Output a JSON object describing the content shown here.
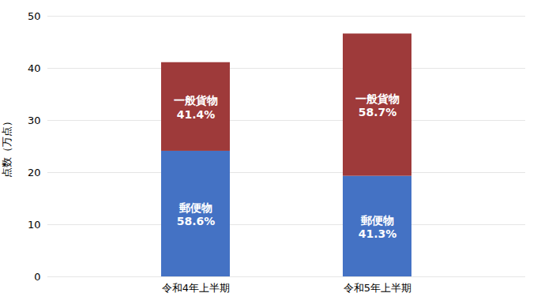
{
  "chart_data": {
    "type": "bar",
    "stacked": true,
    "grid": true,
    "categories": [
      "令和4年上半期",
      "令和5年上半期"
    ],
    "ylabel": "点数（万点）",
    "ylim": [
      0,
      50
    ],
    "yticks": [
      0,
      10,
      20,
      30,
      40,
      50
    ],
    "series": [
      {
        "name": "郵便物",
        "color": "#4472C4",
        "values": [
          24.1,
          19.3
        ],
        "share_labels": [
          "58.6%",
          "41.3%"
        ]
      },
      {
        "name": "一般貨物",
        "color": "#9E3A3A",
        "values": [
          17.0,
          27.3
        ],
        "share_labels": [
          "41.4%",
          "58.7%"
        ]
      }
    ]
  }
}
